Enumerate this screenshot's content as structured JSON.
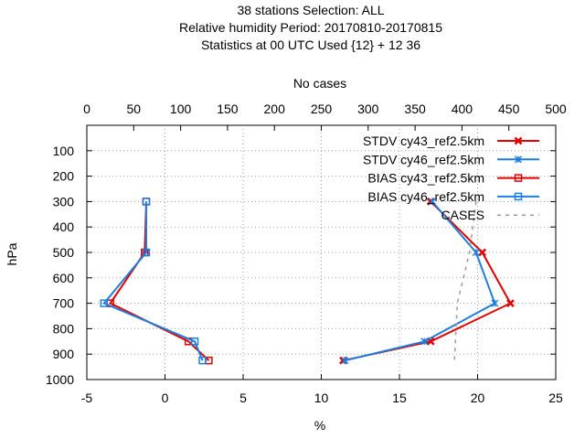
{
  "chart_data": {
    "type": "line",
    "title_lines": [
      "38 stations Selection: ALL",
      "Relative humidity  Period: 20170810-20170815",
      "Statistics at 00 UTC  Used {12} + 12 36"
    ],
    "xlabel": "%",
    "ylabel": "hPa",
    "x2label": "No cases",
    "xlim": [
      -5,
      25
    ],
    "x2lim": [
      0,
      500
    ],
    "ylim": [
      1000,
      0
    ],
    "x_ticks": [
      "-5",
      "0",
      "5",
      "10",
      "15",
      "20",
      "25"
    ],
    "x2_ticks": [
      "0",
      "50",
      "100",
      "150",
      "200",
      "250",
      "300",
      "350",
      "400",
      "450",
      "500"
    ],
    "y_ticks": [
      "100",
      "200",
      "300",
      "400",
      "500",
      "600",
      "700",
      "800",
      "900",
      "1000"
    ],
    "grid": true,
    "legend_position": "top-right",
    "series": [
      {
        "name": "STDV cy43_ref2.5km",
        "color": "#e00000",
        "marker": "x-cross",
        "axis": "x",
        "points": [
          {
            "x": 17.0,
            "y": 300
          },
          {
            "x": 20.3,
            "y": 500
          },
          {
            "x": 22.1,
            "y": 700
          },
          {
            "x": 17.0,
            "y": 850
          },
          {
            "x": 11.4,
            "y": 925
          }
        ]
      },
      {
        "name": "STDV cy46_ref2.5km",
        "color": "#1c7fe0",
        "marker": "x-star",
        "axis": "x",
        "points": [
          {
            "x": 17.1,
            "y": 300
          },
          {
            "x": 19.9,
            "y": 500
          },
          {
            "x": 21.1,
            "y": 700
          },
          {
            "x": 16.6,
            "y": 850
          },
          {
            "x": 11.5,
            "y": 925
          }
        ]
      },
      {
        "name": "BIAS cy43_ref2.5km",
        "color": "#e00000",
        "marker": "square",
        "axis": "x",
        "points": [
          {
            "x": -1.2,
            "y": 300
          },
          {
            "x": -1.3,
            "y": 500
          },
          {
            "x": -3.5,
            "y": 700
          },
          {
            "x": 1.5,
            "y": 850
          },
          {
            "x": 2.8,
            "y": 925
          }
        ]
      },
      {
        "name": "BIAS cy46_ref2.5km",
        "color": "#1c7fe0",
        "marker": "square",
        "axis": "x",
        "points": [
          {
            "x": -1.2,
            "y": 300
          },
          {
            "x": -1.2,
            "y": 500
          },
          {
            "x": -3.9,
            "y": 700
          },
          {
            "x": 1.9,
            "y": 850
          },
          {
            "x": 2.4,
            "y": 925
          }
        ]
      },
      {
        "name": "CASES",
        "color": "#9a9a9a",
        "marker": "none",
        "dashed": true,
        "axis": "x2",
        "points": [
          {
            "x": 415,
            "y": 300
          },
          {
            "x": 408,
            "y": 500
          },
          {
            "x": 395,
            "y": 700
          },
          {
            "x": 393,
            "y": 850
          },
          {
            "x": 392,
            "y": 925
          }
        ]
      }
    ]
  }
}
